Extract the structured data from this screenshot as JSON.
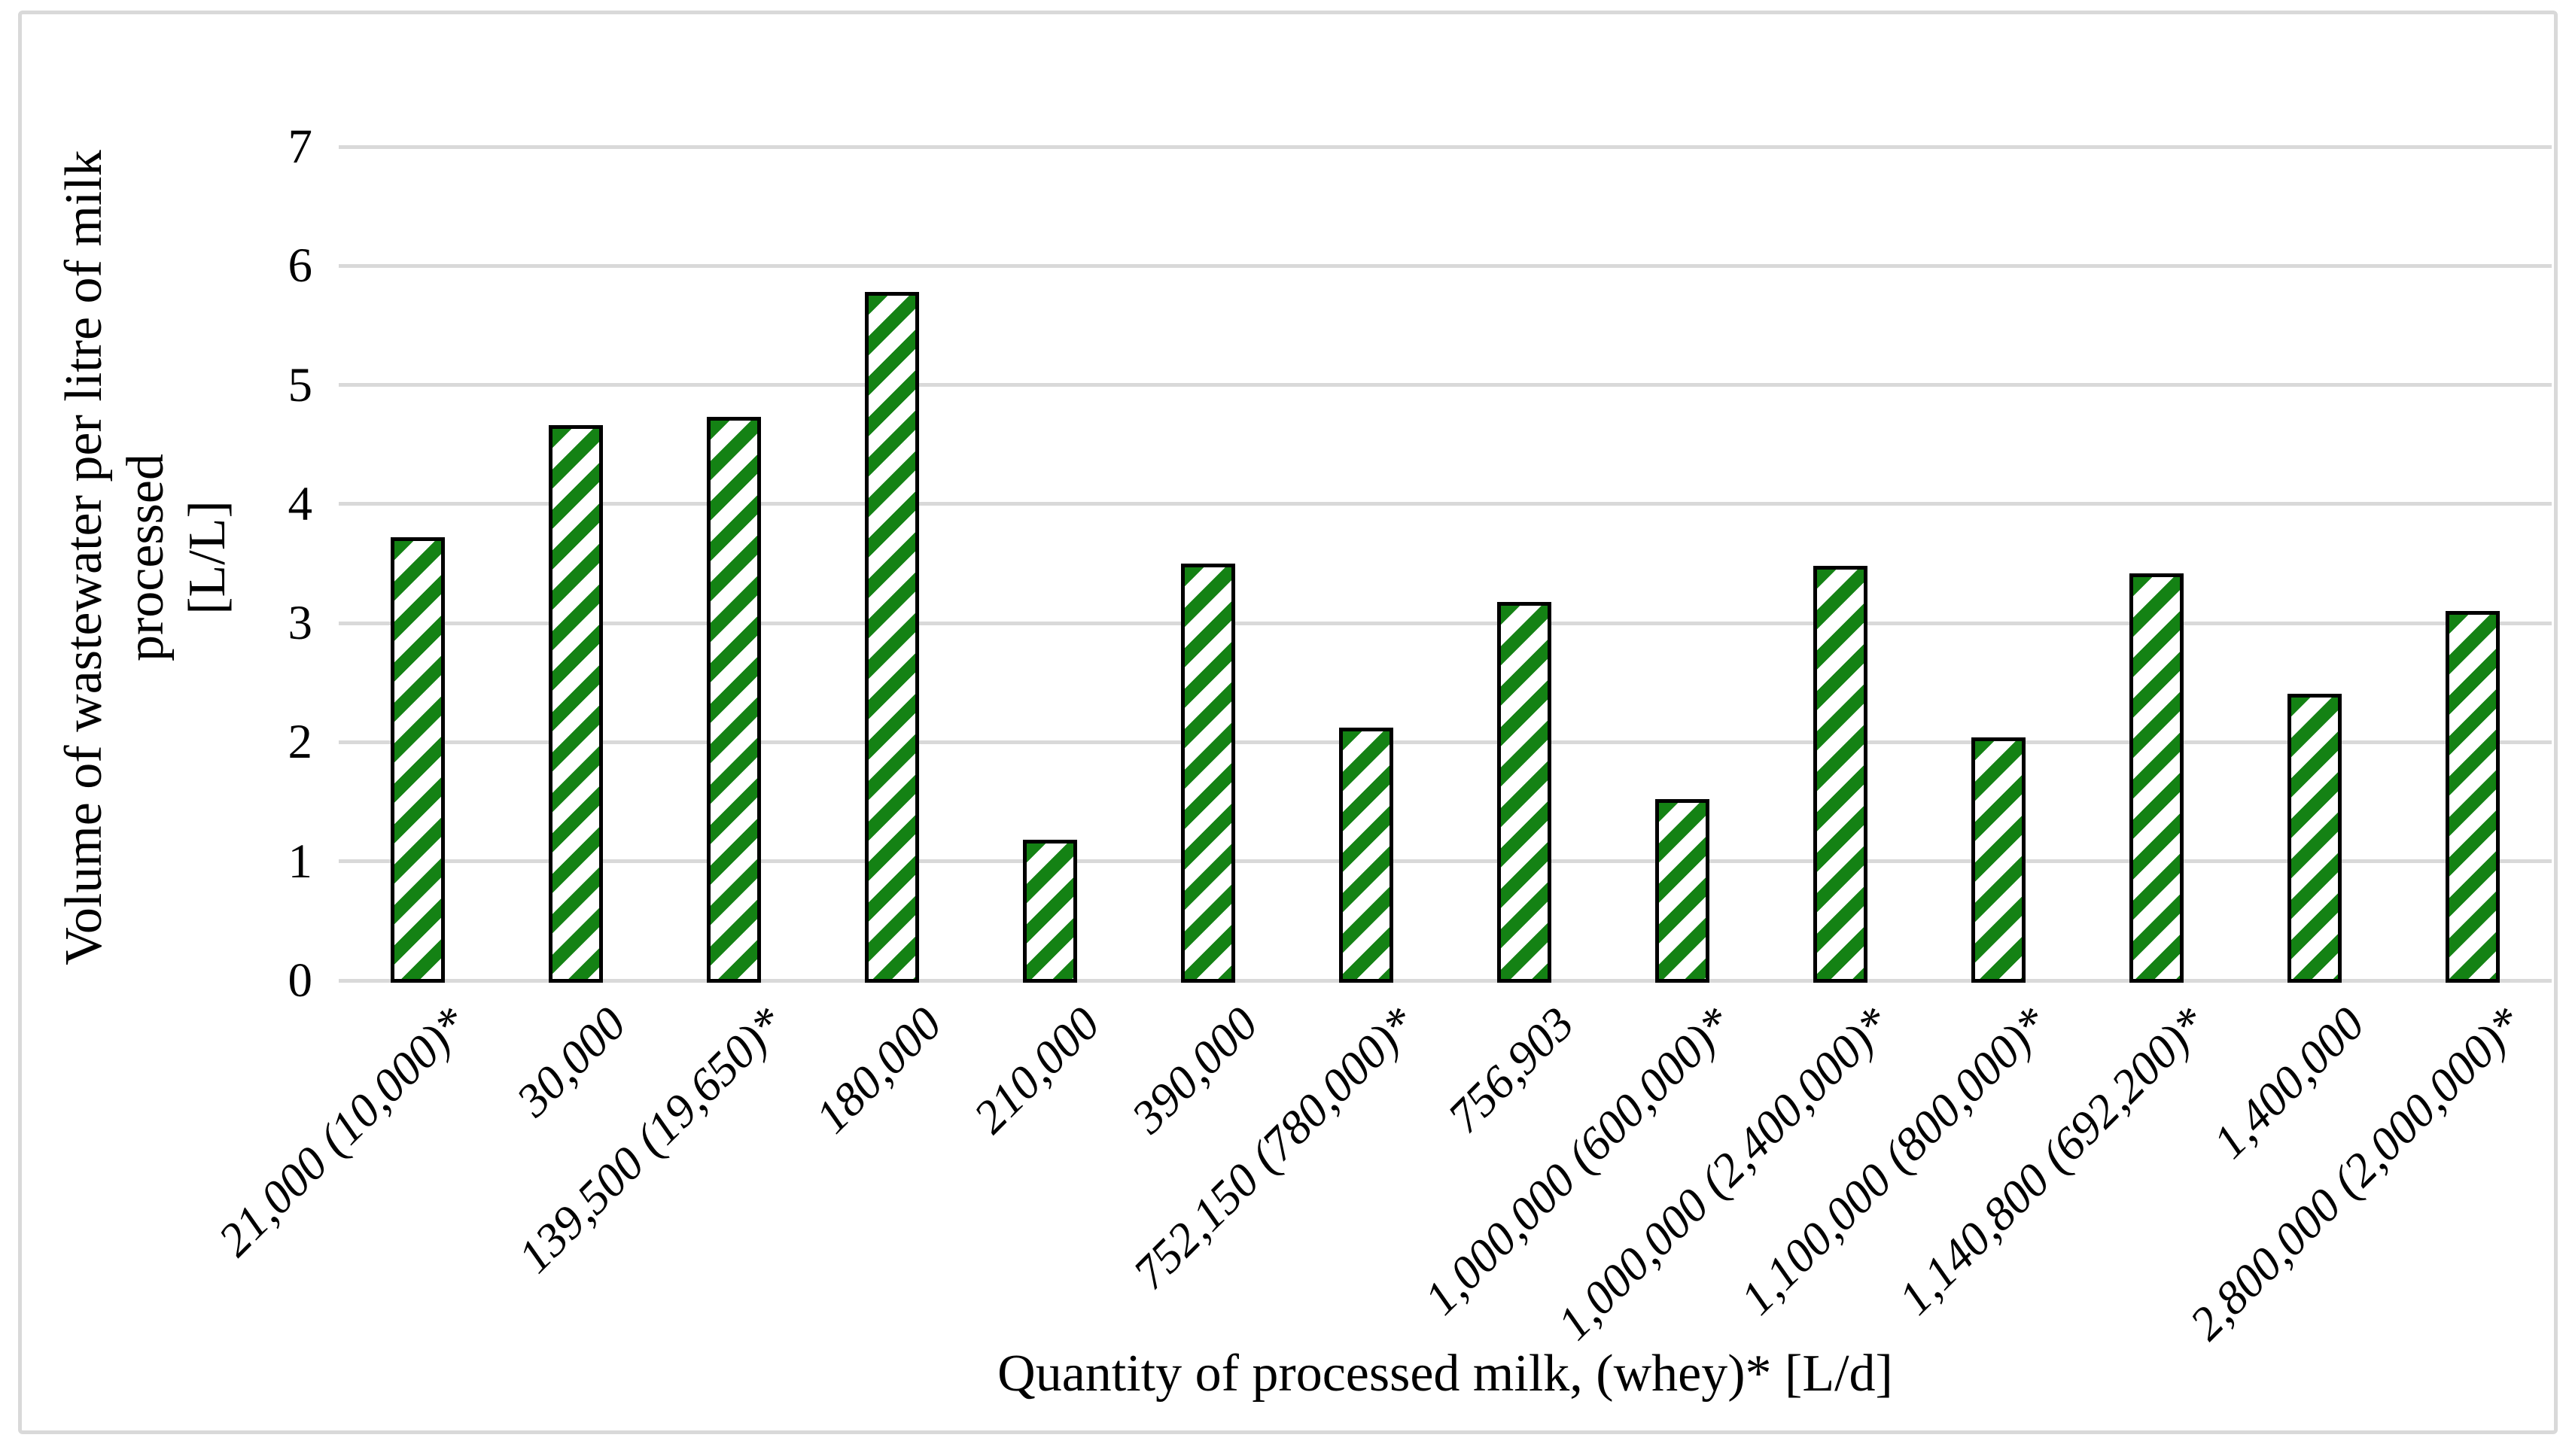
{
  "figure": {
    "y_axis_title_line1": "Volume of wastewater per litre of milk processed",
    "y_axis_title_line2": "[L/L]",
    "x_axis_title": "Quantity of processed milk, (whey)* [L/d]"
  },
  "chart_data": {
    "type": "bar",
    "title": "",
    "xlabel": "Quantity of processed milk, (whey)* [L/d]",
    "ylabel": "Volume of wastewater per litre of milk processed [L/L]",
    "categories": [
      "21,000 (10,000)*",
      "30,000",
      "139,500 (19,650)*",
      "180,000",
      "210,000",
      "390,000",
      "752,150 (780,000)*",
      "756,903",
      "1,000,000 (600,000)*",
      "1,000,000 (2,400,000)*",
      "1,100,000 (800,000)*",
      "1,140,800 (692,200)*",
      "1,400,000",
      "2,800,000 (2,000,000)*"
    ],
    "values": [
      3.72,
      4.66,
      4.73,
      5.78,
      1.18,
      3.5,
      2.12,
      3.18,
      1.52,
      3.48,
      2.04,
      3.42,
      2.41,
      3.1
    ],
    "ylim": [
      0,
      7
    ],
    "yticks": [
      "0",
      "1",
      "2",
      "3",
      "4",
      "5",
      "6",
      "7"
    ],
    "grid": "horizontal",
    "legend": "none",
    "styles": {
      "bar_fill": "#ffffff",
      "bar_stripe": "#148214",
      "bar_border": "#000000",
      "gridline": "#d9d9d9",
      "frame_border": "#d9d9d9",
      "text": "#000000"
    }
  }
}
